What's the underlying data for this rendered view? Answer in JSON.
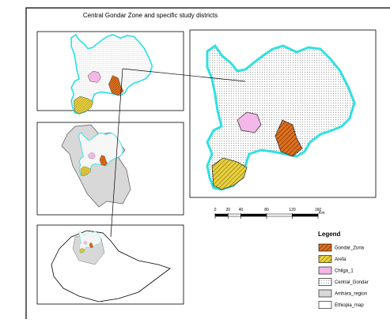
{
  "title": "Central Gondar Zone and specific study districts",
  "scale_bar": {
    "ticks": [
      0,
      20,
      40,
      80,
      120,
      160
    ],
    "unit": "Km"
  },
  "legend": {
    "title": "Legend",
    "items": [
      {
        "name": "Gondar_Zuria",
        "color": "#e07020",
        "style": "hatch"
      },
      {
        "name": "Arefa",
        "color": "#e8d040",
        "style": "hatch"
      },
      {
        "name": "Chilga_1",
        "color": "#f4b8e8",
        "style": "solid"
      },
      {
        "name": "Central_Gondar",
        "color": "#ffffff",
        "style": "dots"
      },
      {
        "name": "Amhara_region",
        "color": "#d8d8d8",
        "style": "solid"
      },
      {
        "name": "Ethiopia_map",
        "color": "#ffffff",
        "style": "solid"
      }
    ]
  }
}
